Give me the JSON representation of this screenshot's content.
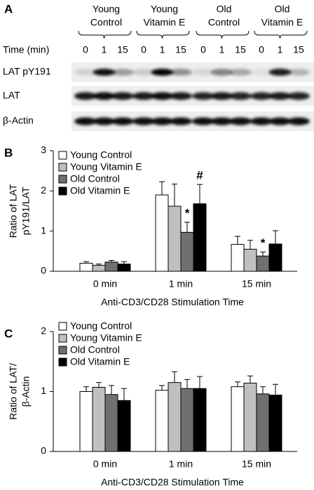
{
  "panel_a": {
    "label": "A",
    "groups": [
      {
        "name": [
          "Young",
          "Control"
        ],
        "times": [
          "0",
          "1",
          "15"
        ]
      },
      {
        "name": [
          "Young",
          "Vitamin E"
        ],
        "times": [
          "0",
          "1",
          "15"
        ]
      },
      {
        "name": [
          "Old",
          "Control"
        ],
        "times": [
          "0",
          "1",
          "15"
        ]
      },
      {
        "name": [
          "Old",
          "Vitamin E"
        ],
        "times": [
          "0",
          "1",
          "15"
        ]
      }
    ],
    "time_label": "Time (min)",
    "rows": [
      "LAT pY191",
      "LAT",
      "β-Actin"
    ]
  },
  "chart_data": [
    {
      "type": "bar",
      "label": "B",
      "y_label": [
        "Ratio of LAT",
        "pY191/LAT"
      ],
      "x_label": "Anti-CD3/CD28 Stimulation Time",
      "categories": [
        "0 min",
        "1 min",
        "15 min"
      ],
      "ylim": [
        0,
        3
      ],
      "yticks": [
        0,
        1,
        2,
        3
      ],
      "series": [
        {
          "name": "Young Control",
          "color": "#ffffff",
          "values": [
            0.2,
            1.9,
            0.67
          ],
          "errors": [
            0.04,
            0.33,
            0.2
          ]
        },
        {
          "name": "Young Vitamin E",
          "color": "#c0c0c0",
          "values": [
            0.15,
            1.62,
            0.55
          ],
          "errors": [
            0.03,
            0.55,
            0.22
          ]
        },
        {
          "name": "Old Control",
          "color": "#707070",
          "values": [
            0.23,
            0.97,
            0.38
          ],
          "errors": [
            0.04,
            0.25,
            0.1
          ]
        },
        {
          "name": "Old Vitamin E",
          "color": "#000000",
          "values": [
            0.18,
            1.68,
            0.68
          ],
          "errors": [
            0.06,
            0.48,
            0.33
          ]
        }
      ],
      "annotations": [
        {
          "text": "*",
          "series": 2,
          "category": 1
        },
        {
          "text": "#",
          "series": 3,
          "category": 1
        },
        {
          "text": "*",
          "series": 2,
          "category": 2
        }
      ]
    },
    {
      "type": "bar",
      "label": "C",
      "y_label": [
        "Ratio of LAT/",
        "β-Actin"
      ],
      "x_label": "Anti-CD3/CD28 Stimulation Time",
      "categories": [
        "0 min",
        "1 min",
        "15 min"
      ],
      "ylim": [
        0,
        2
      ],
      "yticks": [
        0,
        1,
        2
      ],
      "series": [
        {
          "name": "Young Control",
          "color": "#ffffff",
          "values": [
            1.0,
            1.02,
            1.08
          ],
          "errors": [
            0.08,
            0.08,
            0.08
          ]
        },
        {
          "name": "Young Vitamin E",
          "color": "#c0c0c0",
          "values": [
            1.07,
            1.15,
            1.14
          ],
          "errors": [
            0.08,
            0.18,
            0.12
          ]
        },
        {
          "name": "Old Control",
          "color": "#707070",
          "values": [
            0.95,
            1.05,
            0.96
          ],
          "errors": [
            0.15,
            0.15,
            0.12
          ]
        },
        {
          "name": "Old Vitamin E",
          "color": "#000000",
          "values": [
            0.85,
            1.05,
            0.94
          ],
          "errors": [
            0.2,
            0.2,
            0.18
          ]
        }
      ]
    }
  ]
}
